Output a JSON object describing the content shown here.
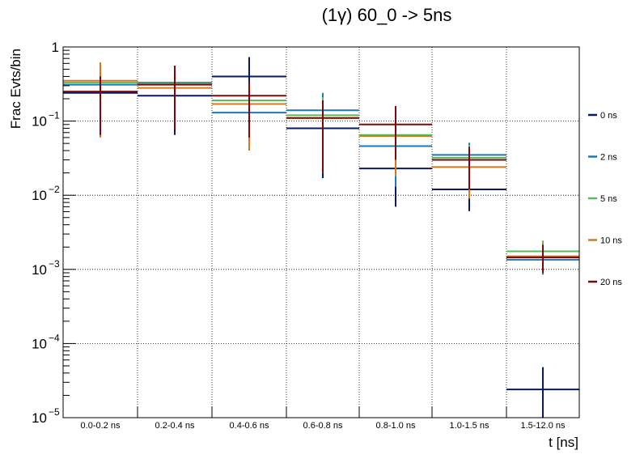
{
  "chart_data": {
    "type": "line",
    "title": "(1γ) 60_0 -> 5ns",
    "xlabel": "t [ns]",
    "ylabel": "Frac Evts/bin",
    "yscale": "log",
    "ylim": [
      1e-05,
      1
    ],
    "ytick_labels": [
      {
        "base": "1",
        "exp": ""
      },
      {
        "base": "10",
        "exp": "−1"
      },
      {
        "base": "10",
        "exp": "−2"
      },
      {
        "base": "10",
        "exp": "−3"
      },
      {
        "base": "10",
        "exp": "−4"
      },
      {
        "base": "10",
        "exp": "−5"
      }
    ],
    "categories": [
      "0.0-0.2 ns",
      "0.2-0.4 ns",
      "0.4-0.6 ns",
      "0.6-0.8 ns",
      "0.8-1.0 ns",
      "1.0-1.5 ns",
      "1.5-12.0 ns"
    ],
    "grid": true,
    "legend_position": "right",
    "series": [
      {
        "name": "0 ns",
        "color": "#0b1a5c",
        "values": [
          0.24,
          0.22,
          0.4,
          0.08,
          0.023,
          0.012,
          2.4e-05
        ],
        "err_lo": [
          0.17,
          0.155,
          0.28,
          0.063,
          0.016,
          0.0059,
          1.4e-05
        ],
        "err_hi": [
          0.14,
          0.13,
          0.33,
          0.06,
          0.015,
          0.0058,
          2.4e-05
        ]
      },
      {
        "name": "2 ns",
        "color": "#1f77b4",
        "values": [
          0.31,
          0.33,
          0.13,
          0.14,
          0.046,
          0.035,
          0.00135
        ],
        "err_lo": [
          0.19,
          0.2,
          0.08,
          0.12,
          0.033,
          0.022,
          0.0005
        ],
        "err_hi": [
          0.2,
          0.2,
          0.09,
          0.1,
          0.03,
          0.016,
          0.0006
        ]
      },
      {
        "name": "5 ns",
        "color": "#5cb85c",
        "values": [
          0.33,
          0.32,
          0.19,
          0.12,
          0.065,
          0.032,
          0.00175
        ],
        "err_lo": [
          0.2,
          0.2,
          0.13,
          0.1,
          0.045,
          0.02,
          0.0008
        ],
        "err_hi": [
          0.22,
          0.22,
          0.14,
          0.09,
          0.04,
          0.016,
          0.0007
        ]
      },
      {
        "name": "10 ns",
        "color": "#d4781e",
        "values": [
          0.35,
          0.28,
          0.17,
          0.11,
          0.063,
          0.024,
          0.0015
        ],
        "err_lo": [
          0.29,
          0.2,
          0.13,
          0.09,
          0.045,
          0.015,
          0.0006
        ],
        "err_hi": [
          0.27,
          0.2,
          0.12,
          0.08,
          0.045,
          0.012,
          0.0006
        ]
      },
      {
        "name": "20 ns",
        "color": "#7a0a0a",
        "values": [
          0.25,
          0.31,
          0.22,
          0.11,
          0.09,
          0.03,
          0.00145
        ],
        "err_lo": [
          0.185,
          0.23,
          0.16,
          0.09,
          0.06,
          0.018,
          0.00055
        ],
        "err_hi": [
          0.15,
          0.25,
          0.12,
          0.08,
          0.07,
          0.015,
          0.0007
        ]
      }
    ]
  }
}
